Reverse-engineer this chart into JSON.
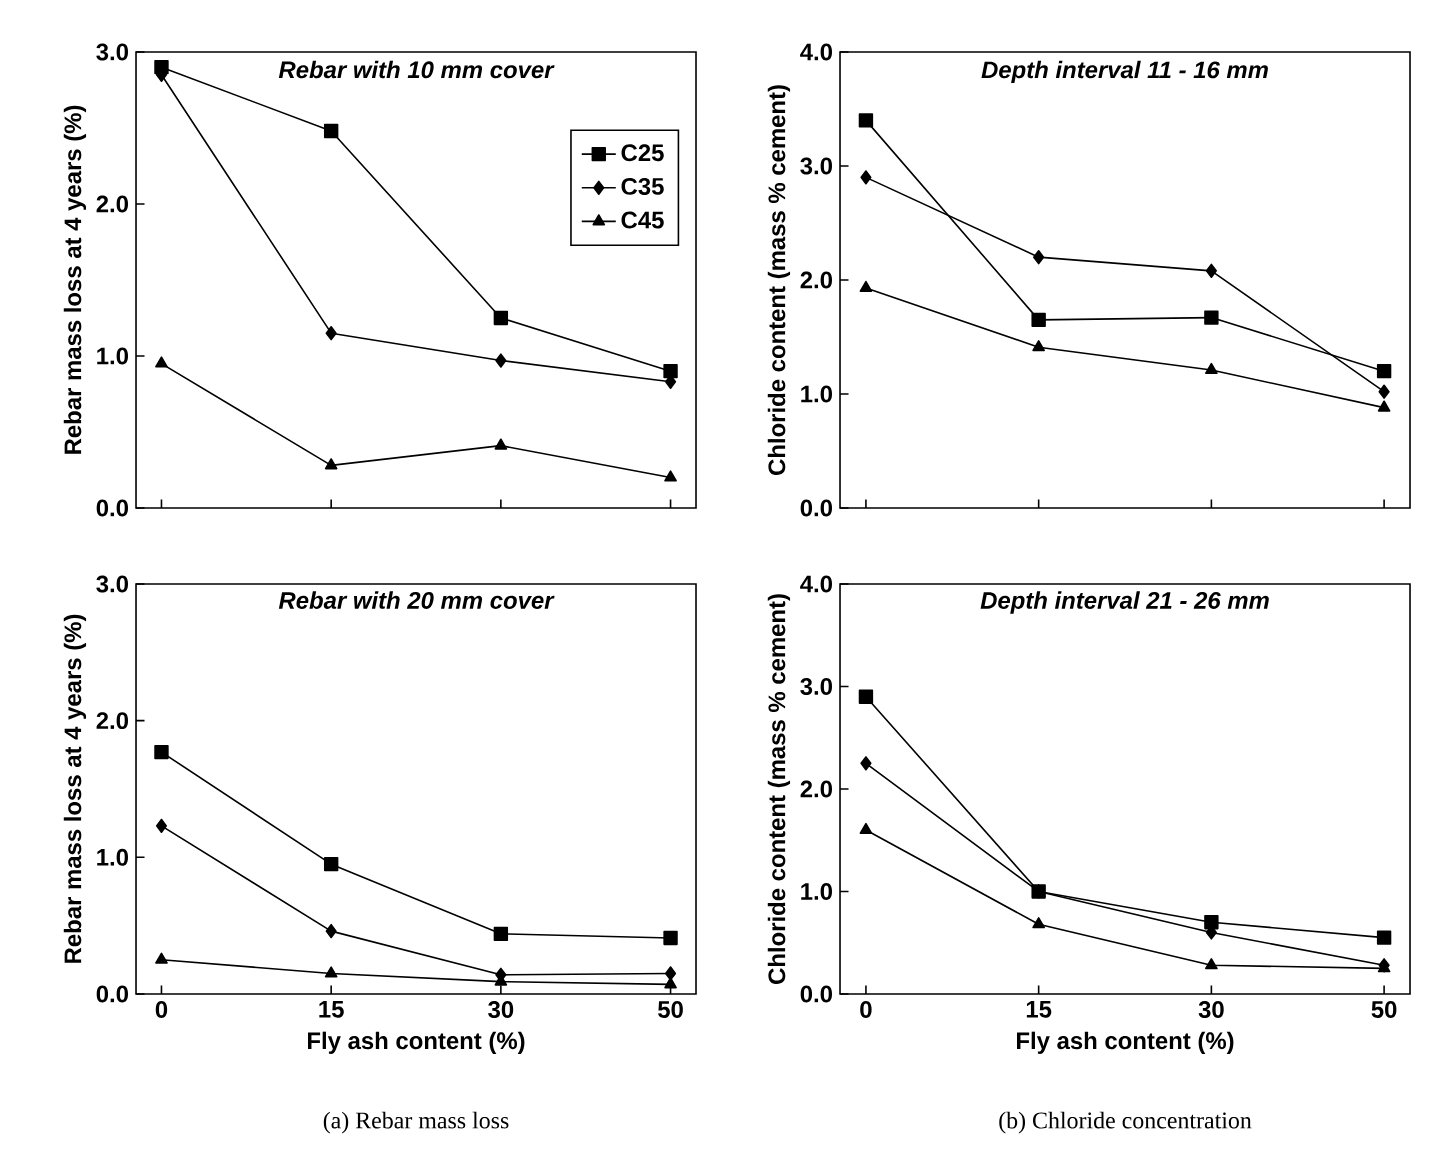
{
  "chart_data": [
    {
      "type": "line",
      "title": "Rebar with 10 mm cover",
      "ylabel": "Rebar mass loss at 4 years (%)",
      "categories": [
        "0",
        "15",
        "30",
        "50"
      ],
      "ylim": [
        0,
        3
      ],
      "yticks": [
        {
          "value": 0,
          "label": "0.0"
        },
        {
          "value": 1,
          "label": "1.0"
        },
        {
          "value": 2,
          "label": "2.0"
        },
        {
          "value": 3,
          "label": "3.0"
        }
      ],
      "tick_labels": "y",
      "legend": "top right",
      "series": [
        {
          "name": "C25",
          "color": "#000000",
          "marker": "square",
          "values": [
            2.9,
            2.48,
            1.25,
            0.9
          ]
        },
        {
          "name": "C35",
          "color": "#000000",
          "marker": "diamond",
          "values": [
            2.85,
            1.15,
            0.97,
            0.83
          ]
        },
        {
          "name": "C45",
          "color": "#000000",
          "marker": "triangle",
          "values": [
            0.95,
            0.28,
            0.41,
            0.2
          ]
        }
      ]
    },
    {
      "type": "line",
      "title": "Depth interval 11 - 16 mm",
      "ylabel": "Chloride content (mass % cement)",
      "categories": [
        "0",
        "15",
        "30",
        "50"
      ],
      "ylim": [
        0,
        4
      ],
      "yticks": [
        {
          "value": 0,
          "label": "0.0"
        },
        {
          "value": 1,
          "label": "1.0"
        },
        {
          "value": 2,
          "label": "2.0"
        },
        {
          "value": 3,
          "label": "3.0"
        },
        {
          "value": 4,
          "label": "4.0"
        }
      ],
      "tick_labels": "y",
      "series": [
        {
          "color": "#000000",
          "marker": "square",
          "values": [
            3.4,
            1.65,
            1.67,
            1.2
          ]
        },
        {
          "color": "#000000",
          "marker": "diamond",
          "values": [
            2.9,
            2.2,
            2.08,
            1.02
          ]
        },
        {
          "color": "#000000",
          "marker": "triangle",
          "values": [
            1.93,
            1.41,
            1.21,
            0.88
          ]
        }
      ]
    },
    {
      "type": "line",
      "title": "Rebar with 20 mm cover",
      "xlabel": "Fly ash content (%)",
      "ylabel": "Rebar mass loss at 4 years (%)",
      "annotations": [
        "(a) Rebar mass loss"
      ],
      "categories": [
        "0",
        "15",
        "30",
        "50"
      ],
      "ylim": [
        0,
        3
      ],
      "yticks": [
        {
          "value": 0,
          "label": "0.0"
        },
        {
          "value": 1,
          "label": "1.0"
        },
        {
          "value": 2,
          "label": "2.0"
        },
        {
          "value": 3,
          "label": "3.0"
        }
      ],
      "series": [
        {
          "color": "#000000",
          "marker": "square",
          "values": [
            1.77,
            0.95,
            0.44,
            0.41
          ]
        },
        {
          "color": "#000000",
          "marker": "diamond",
          "values": [
            1.23,
            0.46,
            0.14,
            0.15
          ]
        },
        {
          "color": "#000000",
          "marker": "triangle",
          "values": [
            0.25,
            0.15,
            0.09,
            0.07
          ]
        }
      ]
    },
    {
      "type": "line",
      "title": "Depth interval 21 - 26 mm",
      "xlabel": "Fly ash content (%)",
      "ylabel": "Chloride content (mass % cement)",
      "annotations": [
        "(b) Chloride concentration"
      ],
      "categories": [
        "0",
        "15",
        "30",
        "50"
      ],
      "ylim": [
        0,
        4
      ],
      "yticks": [
        {
          "value": 0,
          "label": "0.0"
        },
        {
          "value": 1,
          "label": "1.0"
        },
        {
          "value": 2,
          "label": "2.0"
        },
        {
          "value": 3,
          "label": "3.0"
        },
        {
          "value": 4,
          "label": "4.0"
        }
      ],
      "series": [
        {
          "color": "#000000",
          "marker": "square",
          "values": [
            2.9,
            1.0,
            0.7,
            0.55
          ]
        },
        {
          "color": "#000000",
          "marker": "diamond",
          "values": [
            2.25,
            1.0,
            0.6,
            0.28
          ]
        },
        {
          "color": "#000000",
          "marker": "triangle",
          "values": [
            1.6,
            0.68,
            0.28,
            0.25
          ]
        }
      ]
    }
  ]
}
